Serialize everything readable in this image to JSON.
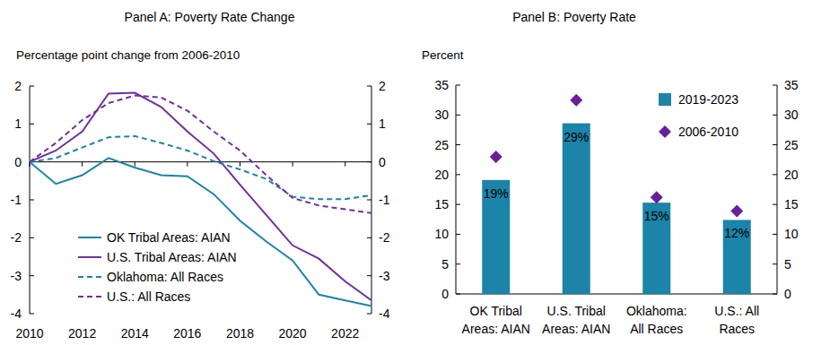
{
  "chart_data": [
    {
      "type": "line",
      "title": "Panel A: Poverty Rate Change",
      "y_label": "Percentage point change from 2006-2010",
      "x": [
        2010,
        2011,
        2012,
        2013,
        2014,
        2015,
        2016,
        2017,
        2018,
        2019,
        2020,
        2021,
        2022,
        2023
      ],
      "xlim": [
        2010,
        2023
      ],
      "xticks": [
        2010,
        2012,
        2014,
        2016,
        2018,
        2020,
        2022
      ],
      "ylim": [
        -4,
        2
      ],
      "yticks": [
        -4,
        -3,
        -2,
        -1,
        0,
        1,
        2
      ],
      "y2lim": [
        -4,
        2
      ],
      "y2ticks": [
        -4,
        -3,
        -2,
        -1,
        0,
        1,
        2
      ],
      "legend": "lower left",
      "series": [
        {
          "name": "OK Tribal Areas: AIAN",
          "color": "#1b84a8",
          "line_style": "solid",
          "values": [
            0,
            -0.58,
            -0.35,
            0.1,
            -0.15,
            -0.35,
            -0.38,
            -0.85,
            -1.55,
            -2.1,
            -2.6,
            -3.5,
            -3.65,
            -3.8
          ]
        },
        {
          "name": "U.S. Tribal Areas: AIAN",
          "color": "#7030a0",
          "line_style": "solid",
          "values": [
            0,
            0.3,
            0.8,
            1.8,
            1.82,
            1.45,
            0.8,
            0.22,
            -0.6,
            -1.4,
            -2.2,
            -2.55,
            -3.15,
            -3.65
          ]
        },
        {
          "name": "Oklahoma: All Races",
          "color": "#1b84a8",
          "line_style": "dashed",
          "values": [
            0,
            0.1,
            0.38,
            0.65,
            0.68,
            0.5,
            0.3,
            0.02,
            -0.2,
            -0.45,
            -0.92,
            -0.98,
            -0.98,
            -0.88
          ]
        },
        {
          "name": "U.S.: All Races",
          "color": "#7030a0",
          "line_style": "dashed",
          "values": [
            0,
            0.5,
            1.1,
            1.55,
            1.75,
            1.7,
            1.35,
            0.8,
            0.3,
            -0.35,
            -0.95,
            -1.15,
            -1.25,
            -1.35
          ]
        }
      ]
    },
    {
      "type": "bar",
      "title": "Panel B: Poverty Rate",
      "y_label": "Percent",
      "categories": [
        "OK Tribal Areas: AIAN",
        "U.S. Tribal Areas: AIAN",
        "Oklahoma: All Races",
        "U.S.: All Races"
      ],
      "ylim": [
        0,
        35
      ],
      "yticks": [
        0,
        5,
        10,
        15,
        20,
        25,
        30,
        35
      ],
      "y2lim": [
        0,
        35
      ],
      "y2ticks": [
        0,
        5,
        10,
        15,
        20,
        25,
        30,
        35
      ],
      "legend": "upper right",
      "series": [
        {
          "name": "2019-2023",
          "type": "bar",
          "color": "#1b84a8",
          "data_labels": true,
          "values": [
            19.1,
            28.6,
            15.3,
            12.4
          ],
          "value_labels": [
            "19%",
            "29%",
            "15%",
            "12%"
          ]
        },
        {
          "name": "2006-2010",
          "type": "scatter",
          "marker": "diamond",
          "color": "#6a1f9a",
          "values": [
            23,
            32.5,
            16.2,
            13.9
          ]
        }
      ]
    }
  ]
}
